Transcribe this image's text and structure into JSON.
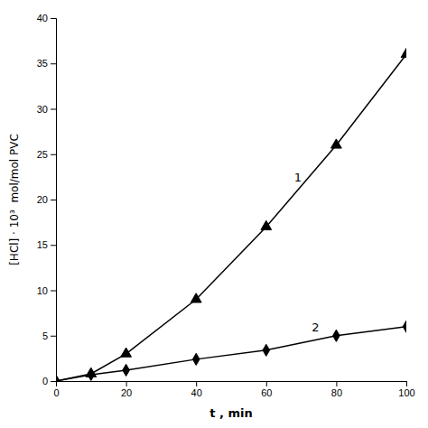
{
  "chart_data": {
    "type": "line",
    "xlabel": "t , min",
    "ylabel": "[HCl] · 10³  mol/mol PVC",
    "x": [
      0,
      10,
      20,
      40,
      60,
      80,
      100
    ],
    "series": [
      {
        "color": "#000000",
        "marker": "triangle",
        "values": [
          0,
          0.8,
          3.0,
          9.0,
          17.0,
          26.0,
          36.0
        ]
      },
      {
        "color": "#000000",
        "marker": "diamond",
        "values": [
          0,
          0.7,
          1.2,
          2.4,
          3.4,
          5.0,
          6.0
        ]
      }
    ],
    "annotations": [
      {
        "text": "1",
        "x": 68,
        "y": 22
      },
      {
        "text": "2",
        "x": 73,
        "y": 5.5
      }
    ],
    "xlim": [
      0,
      100
    ],
    "ylim": [
      0,
      40
    ],
    "xticks": [
      0,
      20,
      40,
      60,
      80,
      100
    ],
    "yticks": [
      0,
      5,
      10,
      15,
      20,
      25,
      30,
      35,
      40
    ],
    "grid": false
  }
}
